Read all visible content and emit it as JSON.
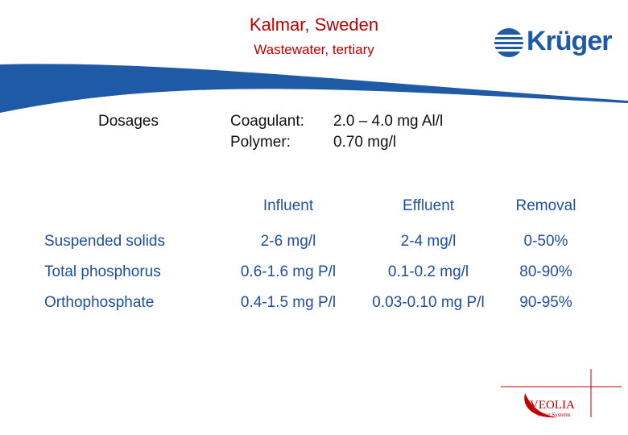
{
  "title": "Kalmar, Sweden",
  "subtitle": "Wastewater, tertiary",
  "logo": {
    "name": "Krüger",
    "color": "#1f5aa6"
  },
  "dosages": {
    "label": "Dosages",
    "items": [
      {
        "name": "Coagulant:",
        "value": "2.0 – 4.0 mg Al/l"
      },
      {
        "name": "Polymer:",
        "value": "0.70 mg/l"
      }
    ]
  },
  "table": {
    "headers": [
      "Influent",
      "Effluent",
      "Removal"
    ],
    "rows": [
      {
        "label": "Suspended solids",
        "influent": "2-6 mg/l",
        "effluent": "2-4 mg/l",
        "removal": "0-50%"
      },
      {
        "label": "Total phosphorus",
        "influent": "0.6-1.6 mg P/l",
        "effluent": "0.1-0.2 mg/l",
        "removal": "80-90%"
      },
      {
        "label": "Orthophosphate",
        "influent": "0.4-1.5 mg P/l",
        "effluent": "0.03-0.10 mg P/l",
        "removal": "90-95%"
      }
    ]
  },
  "footer_logo": {
    "name": "VEOLIA",
    "sub": "Water Systems"
  },
  "colors": {
    "title": "#c00000",
    "table_text": "#1f4e9e",
    "swoosh": "#1f5aa6"
  }
}
